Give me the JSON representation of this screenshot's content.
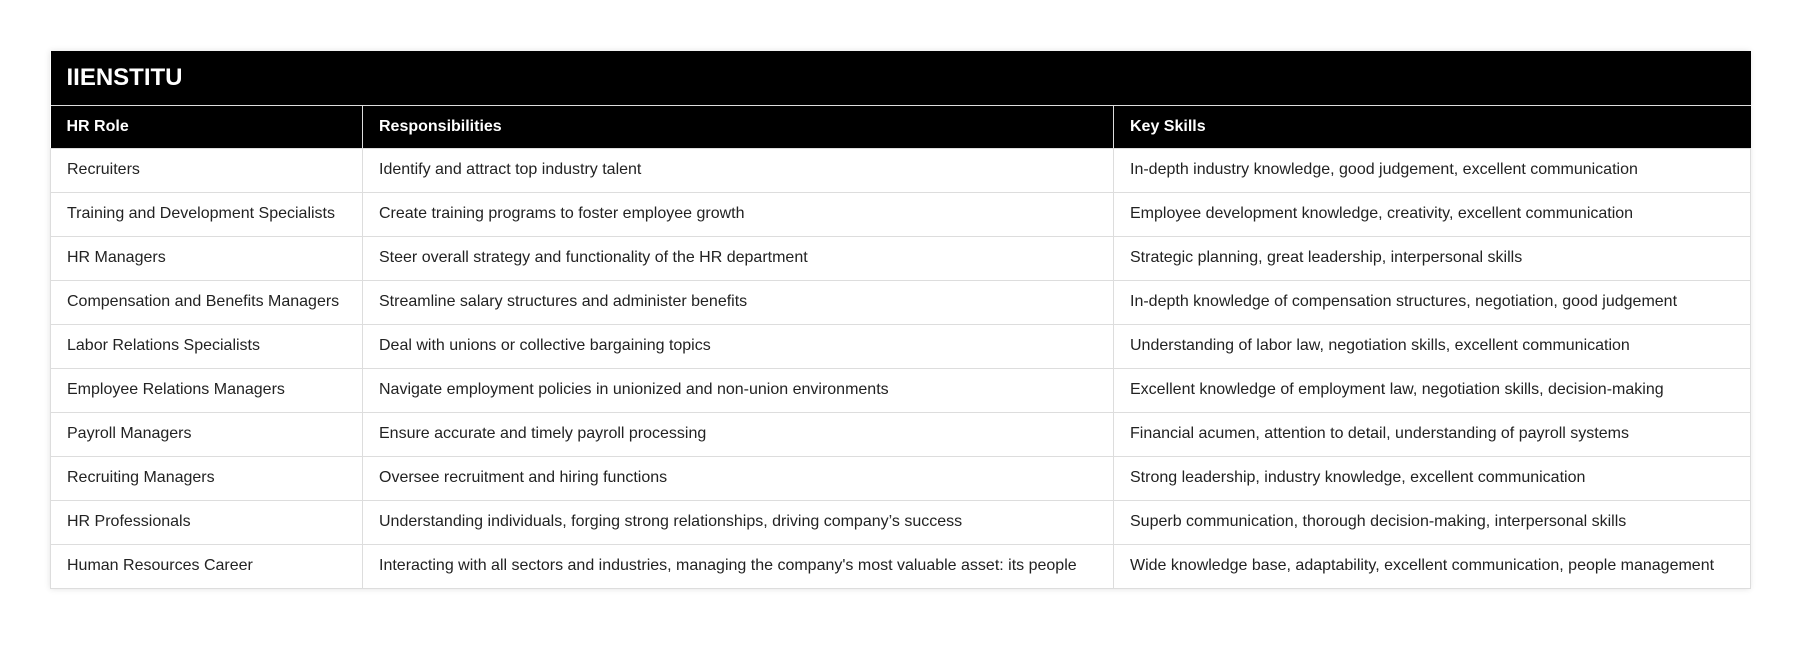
{
  "title": "IIENSTITU",
  "columns": [
    "HR Role",
    "Responsibilities",
    "Key Skills"
  ],
  "rows": [
    [
      "Recruiters",
      "Identify and attract top industry talent",
      "In-depth industry knowledge, good judgement, excellent communication"
    ],
    [
      "Training and Development Specialists",
      "Create training programs to foster employee growth",
      "Employee development knowledge, creativity, excellent communication"
    ],
    [
      "HR Managers",
      "Steer overall strategy and functionality of the HR department",
      "Strategic planning, great leadership, interpersonal skills"
    ],
    [
      "Compensation and Benefits Managers",
      "Streamline salary structures and administer benefits",
      "In-depth knowledge of compensation structures, negotiation, good judgement"
    ],
    [
      "Labor Relations Specialists",
      "Deal with unions or collective bargaining topics",
      "Understanding of labor law, negotiation skills, excellent communication"
    ],
    [
      "Employee Relations Managers",
      "Navigate employment policies in unionized and non-union environments",
      "Excellent knowledge of employment law, negotiation skills, decision-making"
    ],
    [
      "Payroll Managers",
      "Ensure accurate and timely payroll processing",
      "Financial acumen, attention to detail, understanding of payroll systems"
    ],
    [
      "Recruiting Managers",
      "Oversee recruitment and hiring functions",
      "Strong leadership, industry knowledge, excellent communication"
    ],
    [
      "HR Professionals",
      "Understanding individuals, forging strong relationships, driving company’s success",
      "Superb communication, thorough decision-making, interpersonal skills"
    ],
    [
      "Human Resources Career",
      "Interacting with all sectors and industries, managing the company's most valuable asset: its people",
      "Wide knowledge base, adaptability, excellent communication, people management"
    ]
  ]
}
